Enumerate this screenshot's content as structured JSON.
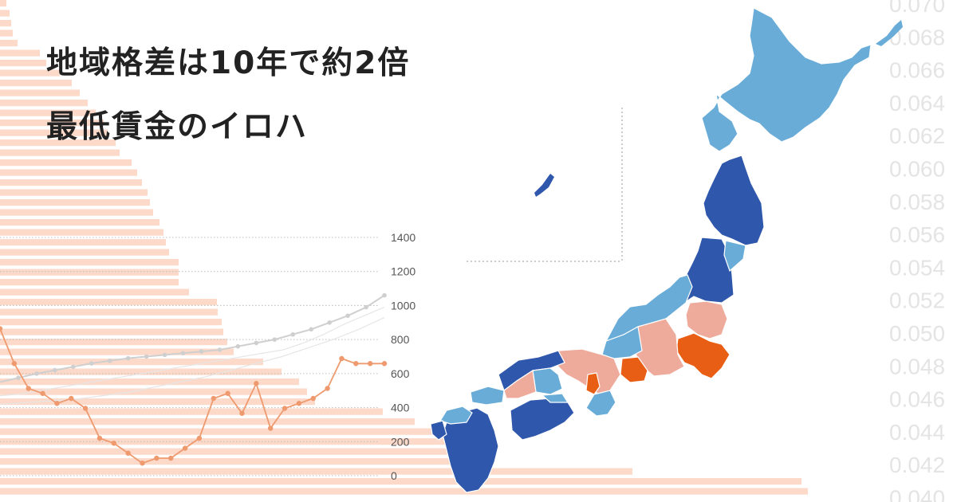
{
  "title": {
    "line1": "地域格差は10年で約2倍",
    "line2": "最低賃金のイロハ"
  },
  "colors": {
    "bars": "#fcd9c9",
    "orange_line": "#ef9a6e",
    "gray_line": "#cfcfcf",
    "map_light_blue": "#69acd8",
    "map_dark_blue": "#2f57ac",
    "map_pink": "#eeaa9a",
    "map_orange": "#e85e14",
    "right_scale_text": "#e4e4e4"
  },
  "chart_data": [
    {
      "type": "line",
      "yticks": [
        "1400",
        "1200",
        "1000",
        "800",
        "600",
        "400",
        "200",
        "0"
      ],
      "series": [
        {
          "values": [
            550,
            575,
            600,
            620,
            640,
            660,
            675,
            690,
            700,
            710,
            720,
            730,
            740,
            760,
            780,
            800,
            830,
            860,
            900,
            940,
            990,
            1060
          ]
        },
        {
          "values": [
            470,
            480,
            500,
            520,
            540,
            560,
            580,
            600,
            620,
            640,
            660,
            680,
            700,
            720,
            740,
            780,
            830,
            890,
            940,
            990
          ]
        },
        {
          "values": [
            420,
            430,
            440,
            450,
            470,
            490,
            520,
            550,
            580,
            620,
            660,
            700,
            750,
            800,
            860,
            930
          ]
        }
      ]
    },
    {
      "type": "line",
      "series": [
        {
          "values": [
            6.2,
            5.5,
            5.0,
            4.9,
            4.7,
            4.8,
            4.6,
            4.0,
            3.9,
            3.7,
            3.5,
            3.6,
            3.6,
            3.8,
            4.0,
            4.8,
            4.9,
            4.5,
            5.1,
            4.2,
            4.6,
            4.7,
            4.8,
            5.0,
            5.6,
            5.5,
            5.5,
            5.5
          ]
        }
      ]
    },
    {
      "type": "bar",
      "orientation": "horizontal",
      "values": [
        8,
        12,
        14,
        16,
        22,
        50,
        58,
        75,
        90,
        100,
        110,
        120,
        130,
        135,
        145,
        150,
        165,
        172,
        178,
        185,
        188,
        192,
        200,
        205,
        208,
        212,
        224,
        224,
        224,
        237,
        272,
        273,
        278,
        280,
        285,
        293,
        330,
        353,
        375,
        385,
        395,
        480,
        520,
        545,
        570,
        605,
        620,
        793,
        1005,
        1013
      ]
    }
  ],
  "right_scale": {
    "ticks": [
      "0.070",
      "0.068",
      "0.066",
      "0.064",
      "0.062",
      "0.060",
      "0.058",
      "0.056",
      "0.054",
      "0.052",
      "0.050",
      "0.048",
      "0.046",
      "0.044",
      "0.042",
      "0.040"
    ]
  }
}
